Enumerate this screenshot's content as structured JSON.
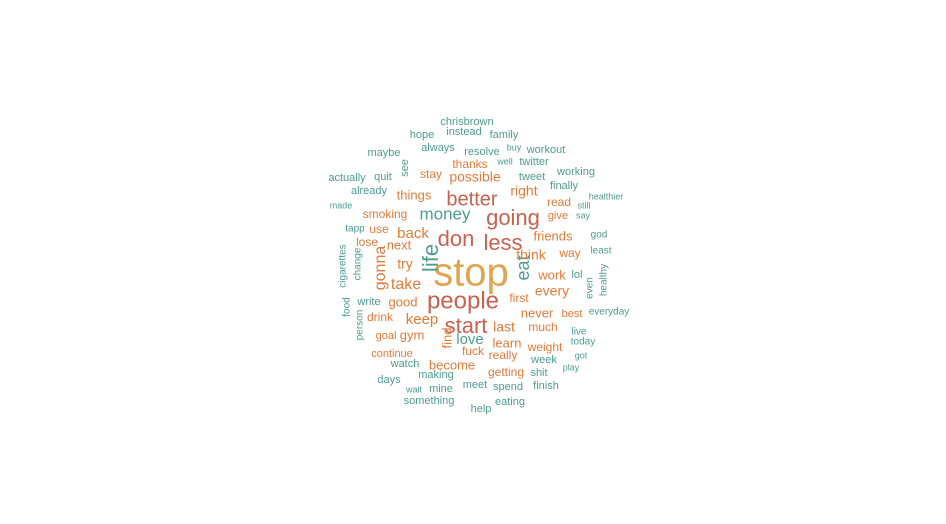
{
  "colors": {
    "biggest": "#E0A553",
    "large": "#C8624F",
    "orange": "#E07B39",
    "teal": "#4E9C92",
    "teal_light": "#3FA09A",
    "small_teal": "#2E8E84"
  },
  "words": [
    {
      "text": "stop",
      "weight": 40,
      "color": "biggest"
    },
    {
      "text": "people",
      "weight": 24,
      "color": "large"
    },
    {
      "text": "start",
      "weight": 22,
      "color": "large"
    },
    {
      "text": "don",
      "weight": 22,
      "color": "large"
    },
    {
      "text": "less",
      "weight": 22,
      "color": "large"
    },
    {
      "text": "going",
      "weight": 22,
      "color": "large"
    },
    {
      "text": "better",
      "weight": 20,
      "color": "large"
    },
    {
      "text": "life",
      "weight": 22,
      "color": "teal"
    },
    {
      "text": "money",
      "weight": 17,
      "color": "teal"
    },
    {
      "text": "eat",
      "weight": 18,
      "color": "teal"
    },
    {
      "text": "gonna",
      "weight": 16,
      "color": "orange"
    },
    {
      "text": "take",
      "weight": 16,
      "color": "orange"
    },
    {
      "text": "keep",
      "weight": 15,
      "color": "orange"
    },
    {
      "text": "back",
      "weight": 15,
      "color": "orange"
    },
    {
      "text": "love",
      "weight": 15,
      "color": "teal"
    },
    {
      "text": "possible",
      "weight": 14,
      "color": "orange"
    },
    {
      "text": "right",
      "weight": 14,
      "color": "orange"
    },
    {
      "text": "try",
      "weight": 14,
      "color": "orange"
    },
    {
      "text": "think",
      "weight": 14,
      "color": "orange"
    },
    {
      "text": "every",
      "weight": 14,
      "color": "orange"
    },
    {
      "text": "last",
      "weight": 14,
      "color": "orange"
    },
    {
      "text": "learn",
      "weight": 13,
      "color": "orange"
    },
    {
      "text": "become",
      "weight": 13,
      "color": "orange"
    },
    {
      "text": "things",
      "weight": 13,
      "color": "orange"
    },
    {
      "text": "friends",
      "weight": 13,
      "color": "orange"
    },
    {
      "text": "work",
      "weight": 13,
      "color": "orange"
    },
    {
      "text": "never",
      "weight": 13,
      "color": "orange"
    },
    {
      "text": "find",
      "weight": 13,
      "color": "orange"
    },
    {
      "text": "next",
      "weight": 13,
      "color": "orange"
    },
    {
      "text": "good",
      "weight": 13,
      "color": "orange"
    },
    {
      "text": "gym",
      "weight": 13,
      "color": "orange"
    },
    {
      "text": "getting",
      "weight": 12,
      "color": "orange"
    },
    {
      "text": "really",
      "weight": 12,
      "color": "orange"
    },
    {
      "text": "stay",
      "weight": 12,
      "color": "orange"
    },
    {
      "text": "way",
      "weight": 12,
      "color": "orange"
    },
    {
      "text": "much",
      "weight": 12,
      "color": "orange"
    },
    {
      "text": "weight",
      "weight": 12,
      "color": "orange"
    },
    {
      "text": "smoking",
      "weight": 12,
      "color": "orange"
    },
    {
      "text": "thanks",
      "weight": 12,
      "color": "orange"
    },
    {
      "text": "read",
      "weight": 12,
      "color": "orange"
    },
    {
      "text": "fuck",
      "weight": 12,
      "color": "orange"
    },
    {
      "text": "drink",
      "weight": 12,
      "color": "orange"
    },
    {
      "text": "use",
      "weight": 12,
      "color": "orange"
    },
    {
      "text": "lose",
      "weight": 12,
      "color": "orange"
    },
    {
      "text": "first",
      "weight": 12,
      "color": "orange"
    },
    {
      "text": "give",
      "weight": 11,
      "color": "orange"
    },
    {
      "text": "goal",
      "weight": 11,
      "color": "orange"
    },
    {
      "text": "continue",
      "weight": 11,
      "color": "orange"
    },
    {
      "text": "best",
      "weight": 11,
      "color": "orange"
    },
    {
      "text": "lol",
      "weight": 11,
      "color": "teal"
    },
    {
      "text": "twitter",
      "weight": 11,
      "color": "teal"
    },
    {
      "text": "resolve",
      "weight": 11,
      "color": "teal"
    },
    {
      "text": "tweet",
      "weight": 11,
      "color": "teal"
    },
    {
      "text": "finally",
      "weight": 11,
      "color": "teal"
    },
    {
      "text": "already",
      "weight": 11,
      "color": "teal"
    },
    {
      "text": "always",
      "weight": 11,
      "color": "teal"
    },
    {
      "text": "instead",
      "weight": 11,
      "color": "teal"
    },
    {
      "text": "working",
      "weight": 11,
      "color": "teal"
    },
    {
      "text": "family",
      "weight": 11,
      "color": "teal"
    },
    {
      "text": "workout",
      "weight": 11,
      "color": "teal"
    },
    {
      "text": "hope",
      "weight": 11,
      "color": "teal"
    },
    {
      "text": "chrisbrown",
      "weight": 11,
      "color": "teal"
    },
    {
      "text": "maybe",
      "weight": 11,
      "color": "teal"
    },
    {
      "text": "quit",
      "weight": 11,
      "color": "teal"
    },
    {
      "text": "actually",
      "weight": 11,
      "color": "teal"
    },
    {
      "text": "see",
      "weight": 11,
      "color": "teal"
    },
    {
      "text": "week",
      "weight": 11,
      "color": "teal"
    },
    {
      "text": "shit",
      "weight": 11,
      "color": "teal"
    },
    {
      "text": "making",
      "weight": 11,
      "color": "teal"
    },
    {
      "text": "watch",
      "weight": 11,
      "color": "teal"
    },
    {
      "text": "meet",
      "weight": 11,
      "color": "teal"
    },
    {
      "text": "spend",
      "weight": 11,
      "color": "teal"
    },
    {
      "text": "mine",
      "weight": 11,
      "color": "teal"
    },
    {
      "text": "finish",
      "weight": 11,
      "color": "teal"
    },
    {
      "text": "days",
      "weight": 11,
      "color": "teal"
    },
    {
      "text": "something",
      "weight": 11,
      "color": "teal"
    },
    {
      "text": "eating",
      "weight": 11,
      "color": "teal"
    },
    {
      "text": "help",
      "weight": 11,
      "color": "teal"
    },
    {
      "text": "write",
      "weight": 11,
      "color": "teal"
    },
    {
      "text": "cigarettes",
      "weight": 10,
      "color": "teal"
    },
    {
      "text": "change",
      "weight": 10,
      "color": "teal"
    },
    {
      "text": "food",
      "weight": 10,
      "color": "teal"
    },
    {
      "text": "person",
      "weight": 10,
      "color": "teal"
    },
    {
      "text": "tapp",
      "weight": 10,
      "color": "teal"
    },
    {
      "text": "live",
      "weight": 10,
      "color": "teal"
    },
    {
      "text": "today",
      "weight": 10,
      "color": "teal"
    },
    {
      "text": "god",
      "weight": 10,
      "color": "teal"
    },
    {
      "text": "least",
      "weight": 10,
      "color": "teal"
    },
    {
      "text": "even",
      "weight": 10,
      "color": "teal"
    },
    {
      "text": "healthy",
      "weight": 10,
      "color": "teal"
    },
    {
      "text": "everyday",
      "weight": 10,
      "color": "teal"
    },
    {
      "text": "got",
      "weight": 9,
      "color": "teal"
    },
    {
      "text": "play",
      "weight": 9,
      "color": "teal"
    },
    {
      "text": "wait",
      "weight": 9,
      "color": "teal"
    },
    {
      "text": "say",
      "weight": 9,
      "color": "teal"
    },
    {
      "text": "still",
      "weight": 9,
      "color": "teal"
    },
    {
      "text": "healthier",
      "weight": 9,
      "color": "teal"
    },
    {
      "text": "buy",
      "weight": 9,
      "color": "teal"
    },
    {
      "text": "well",
      "weight": 9,
      "color": "teal"
    },
    {
      "text": "made",
      "weight": 9,
      "color": "teal"
    }
  ]
}
